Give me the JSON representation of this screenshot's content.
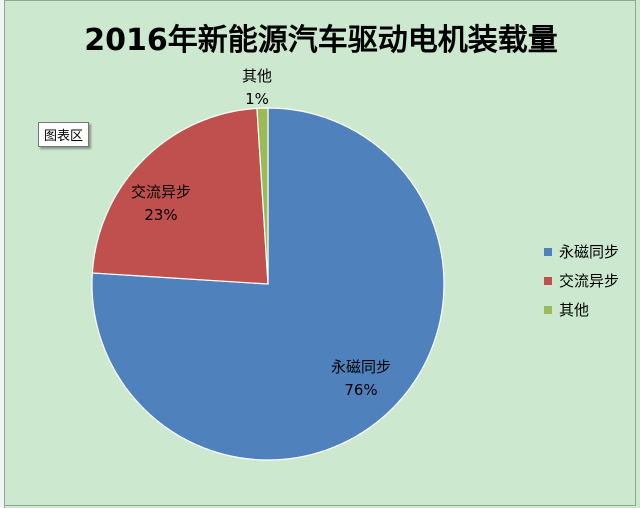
{
  "tooltip": "图表区",
  "chart_data": {
    "type": "pie",
    "title": "2016年新能源汽车驱动电机装载量",
    "categories": [
      "永磁同步",
      "交流异步",
      "其他"
    ],
    "values": [
      76,
      23,
      1
    ],
    "value_labels": [
      "76%",
      "23%",
      "1%"
    ],
    "colors": [
      "#4f81bd",
      "#c0504d",
      "#9bbb59"
    ],
    "legend": {
      "position": "right",
      "entries": [
        "永磁同步",
        "交流异步",
        "其他"
      ]
    }
  }
}
